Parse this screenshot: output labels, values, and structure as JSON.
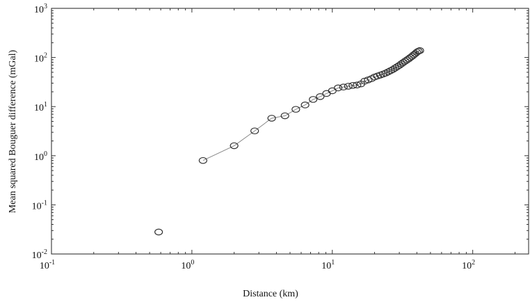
{
  "chart_data": {
    "type": "scatter",
    "xlabel": "Distance (km)",
    "ylabel": "Mean squared Bouguer difference (mGal)",
    "xscale": "log",
    "yscale": "log",
    "xlim": [
      0.1,
      250
    ],
    "ylim": [
      0.01,
      1000
    ],
    "grid": false,
    "x_ticks": [
      {
        "base": "10",
        "exp": "-1",
        "value": 0.1
      },
      {
        "base": "10",
        "exp": "0",
        "value": 1
      },
      {
        "base": "10",
        "exp": "1",
        "value": 10
      },
      {
        "base": "10",
        "exp": "2",
        "value": 100
      }
    ],
    "y_ticks": [
      {
        "base": "10",
        "exp": "-2",
        "value": 0.01
      },
      {
        "base": "10",
        "exp": "-1",
        "value": 0.1
      },
      {
        "base": "10",
        "exp": "0",
        "value": 1
      },
      {
        "base": "10",
        "exp": "1",
        "value": 10
      },
      {
        "base": "10",
        "exp": "2",
        "value": 100
      },
      {
        "base": "10",
        "exp": "3",
        "value": 1000
      }
    ],
    "series": [
      {
        "marker": "circle",
        "line": true,
        "x": [
          0.58,
          1.2,
          2.0,
          2.8,
          3.7,
          4.6,
          5.5,
          6.4,
          7.3,
          8.2,
          9.1,
          10.0,
          11.0,
          12.0,
          13.0,
          14.0,
          15.0,
          16.0,
          17.0,
          18.0,
          19.0,
          20.0,
          21.0,
          22.0,
          23.0,
          24.0,
          25.0,
          26.0,
          27.0,
          28.0,
          29.0,
          30.0,
          31.0,
          32.0,
          33.0,
          34.0,
          35.0,
          36.0,
          37.0,
          38.0,
          39.0,
          40.0,
          41.0,
          42.0
        ],
        "y": [
          0.028,
          0.8,
          1.6,
          3.2,
          5.8,
          6.5,
          8.8,
          10.8,
          14.0,
          16.0,
          18.5,
          21.0,
          24.0,
          25.0,
          26.0,
          27.0,
          27.5,
          29.0,
          33.0,
          35.0,
          37.0,
          40.0,
          42.0,
          44.0,
          46.0,
          48.0,
          51.0,
          54.0,
          57.0,
          61.0,
          65.0,
          69.0,
          74.0,
          79.0,
          84.0,
          89.0,
          94.0,
          100.0,
          106.0,
          113.0,
          120.0,
          128.0,
          134.0,
          138.0
        ]
      }
    ]
  }
}
